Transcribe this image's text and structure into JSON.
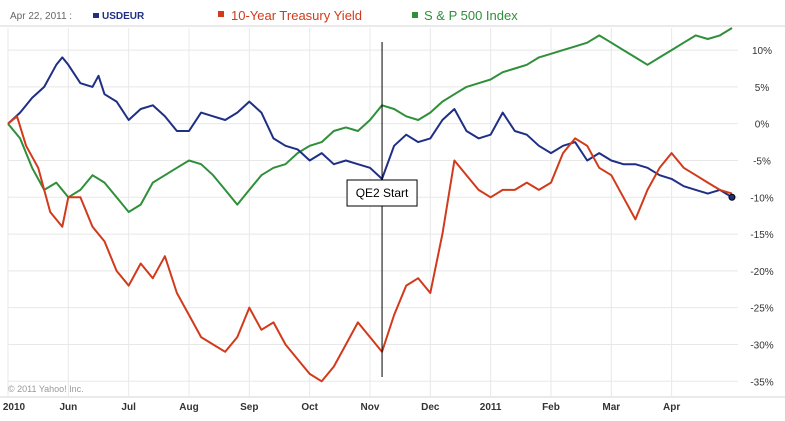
{
  "header": {
    "date": "Apr 22, 2011 :",
    "series_labels": [
      "USDEUR",
      "10-Year Treasury Yield",
      "S & P 500 Index"
    ]
  },
  "copyright": "© 2011 Yahoo! Inc.",
  "annotation": "QE2 Start",
  "colors": {
    "usdeur": "#1f2f86",
    "treasury": "#d13a1b",
    "sp500": "#2f8f3a",
    "grid": "#e8e8e8"
  },
  "chart_data": {
    "type": "line",
    "ylabel": "",
    "ylim": [
      -37,
      13
    ],
    "y_ticks": [
      "10%",
      "5%",
      "0%",
      "-5%",
      "-10%",
      "-15%",
      "-20%",
      "-25%",
      "-30%",
      "-35%"
    ],
    "y_tick_values": [
      10,
      5,
      0,
      -5,
      -10,
      -15,
      -20,
      -25,
      -30,
      -35
    ],
    "x_range": [
      0,
      12.1
    ],
    "x_ticks": [
      "2010",
      "Jun",
      "Jul",
      "Aug",
      "Sep",
      "Oct",
      "Nov",
      "Dec",
      "2011",
      "Feb",
      "Mar",
      "Apr"
    ],
    "x_tick_positions": [
      0,
      1,
      2,
      3,
      4,
      5,
      6,
      7,
      8,
      9,
      10,
      11
    ],
    "vertical_marker": {
      "x": 6.2,
      "label": "QE2 Start"
    },
    "grid": true,
    "series": [
      {
        "name": "USDEUR",
        "color": "#1f2f86",
        "x": [
          0,
          0.2,
          0.4,
          0.6,
          0.8,
          0.9,
          1.0,
          1.2,
          1.4,
          1.5,
          1.6,
          1.8,
          2.0,
          2.2,
          2.4,
          2.6,
          2.8,
          3.0,
          3.2,
          3.4,
          3.6,
          3.8,
          4.0,
          4.2,
          4.4,
          4.6,
          4.8,
          5.0,
          5.2,
          5.4,
          5.6,
          5.8,
          6.0,
          6.2,
          6.4,
          6.6,
          6.8,
          7.0,
          7.2,
          7.4,
          7.6,
          7.8,
          8.0,
          8.2,
          8.4,
          8.6,
          8.8,
          9.0,
          9.2,
          9.4,
          9.6,
          9.8,
          10.0,
          10.2,
          10.4,
          10.6,
          10.8,
          11.0,
          11.2,
          11.4,
          11.6,
          11.8,
          12.0
        ],
        "y": [
          0,
          1.5,
          3.5,
          5,
          8,
          9,
          8,
          5.5,
          5,
          6.5,
          4,
          3,
          0.5,
          2,
          2.5,
          1,
          -1,
          -1,
          1.5,
          1,
          0.5,
          1.5,
          3,
          1.5,
          -2,
          -3,
          -3.5,
          -5,
          -4,
          -5.5,
          -5,
          -5.5,
          -6,
          -7.5,
          -3,
          -1.5,
          -2.5,
          -2,
          0.5,
          2,
          -1,
          -2,
          -1.5,
          1.5,
          -1,
          -1.5,
          -3,
          -4,
          -3,
          -2.5,
          -5,
          -4,
          -5,
          -5.5,
          -5.5,
          -6,
          -7,
          -7.5,
          -8.5,
          -9,
          -9.5,
          -9,
          -10
        ]
      },
      {
        "name": "10-Year Treasury Yield",
        "color": "#d13a1b",
        "x": [
          0,
          0.15,
          0.3,
          0.5,
          0.7,
          0.9,
          1.0,
          1.2,
          1.4,
          1.6,
          1.8,
          2.0,
          2.2,
          2.4,
          2.6,
          2.8,
          3.0,
          3.2,
          3.4,
          3.6,
          3.8,
          4.0,
          4.2,
          4.4,
          4.6,
          4.8,
          5.0,
          5.2,
          5.4,
          5.6,
          5.8,
          6.0,
          6.2,
          6.4,
          6.6,
          6.8,
          7.0,
          7.2,
          7.4,
          7.6,
          7.8,
          8.0,
          8.2,
          8.4,
          8.6,
          8.8,
          9.0,
          9.2,
          9.4,
          9.6,
          9.8,
          10.0,
          10.2,
          10.4,
          10.6,
          10.8,
          11.0,
          11.2,
          11.4,
          11.6,
          11.8,
          12.0
        ],
        "y": [
          0,
          1,
          -3,
          -6,
          -12,
          -14,
          -10,
          -10,
          -14,
          -16,
          -20,
          -22,
          -19,
          -21,
          -18,
          -23,
          -26,
          -29,
          -30,
          -31,
          -29,
          -25,
          -28,
          -27,
          -30,
          -32,
          -34,
          -35,
          -33,
          -30,
          -27,
          -29,
          -31,
          -26,
          -22,
          -21,
          -23,
          -15,
          -5,
          -7,
          -9,
          -10,
          -9,
          -9,
          -8,
          -9,
          -8,
          -4,
          -2,
          -3,
          -6,
          -7,
          -10,
          -13,
          -9,
          -6,
          -4,
          -6,
          -7,
          -8,
          -9,
          -9.5
        ]
      },
      {
        "name": "S & P 500 Index",
        "color": "#2f8f3a",
        "x": [
          0,
          0.2,
          0.4,
          0.6,
          0.8,
          1.0,
          1.2,
          1.4,
          1.6,
          1.8,
          2.0,
          2.2,
          2.4,
          2.6,
          2.8,
          3.0,
          3.2,
          3.4,
          3.6,
          3.8,
          4.0,
          4.2,
          4.4,
          4.6,
          4.8,
          5.0,
          5.2,
          5.4,
          5.6,
          5.8,
          6.0,
          6.2,
          6.4,
          6.6,
          6.8,
          7.0,
          7.2,
          7.4,
          7.6,
          7.8,
          8.0,
          8.2,
          8.4,
          8.6,
          8.8,
          9.0,
          9.2,
          9.4,
          9.6,
          9.8,
          10.0,
          10.2,
          10.4,
          10.6,
          10.8,
          11.0,
          11.2,
          11.4,
          11.6,
          11.8,
          12.0
        ],
        "y": [
          0,
          -2,
          -6,
          -9,
          -8,
          -10,
          -9,
          -7,
          -8,
          -10,
          -12,
          -11,
          -8,
          -7,
          -6,
          -5,
          -5.5,
          -7,
          -9,
          -11,
          -9,
          -7,
          -6,
          -5.5,
          -4,
          -3,
          -2.5,
          -1,
          -0.5,
          -1,
          0.5,
          2.5,
          2,
          1,
          0.5,
          1.5,
          3,
          4,
          5,
          5.5,
          6,
          7,
          7.5,
          8,
          9,
          9.5,
          10,
          10.5,
          11,
          12,
          11,
          10,
          9,
          8,
          9,
          10,
          11,
          12,
          11.5,
          12,
          13
        ]
      }
    ]
  }
}
